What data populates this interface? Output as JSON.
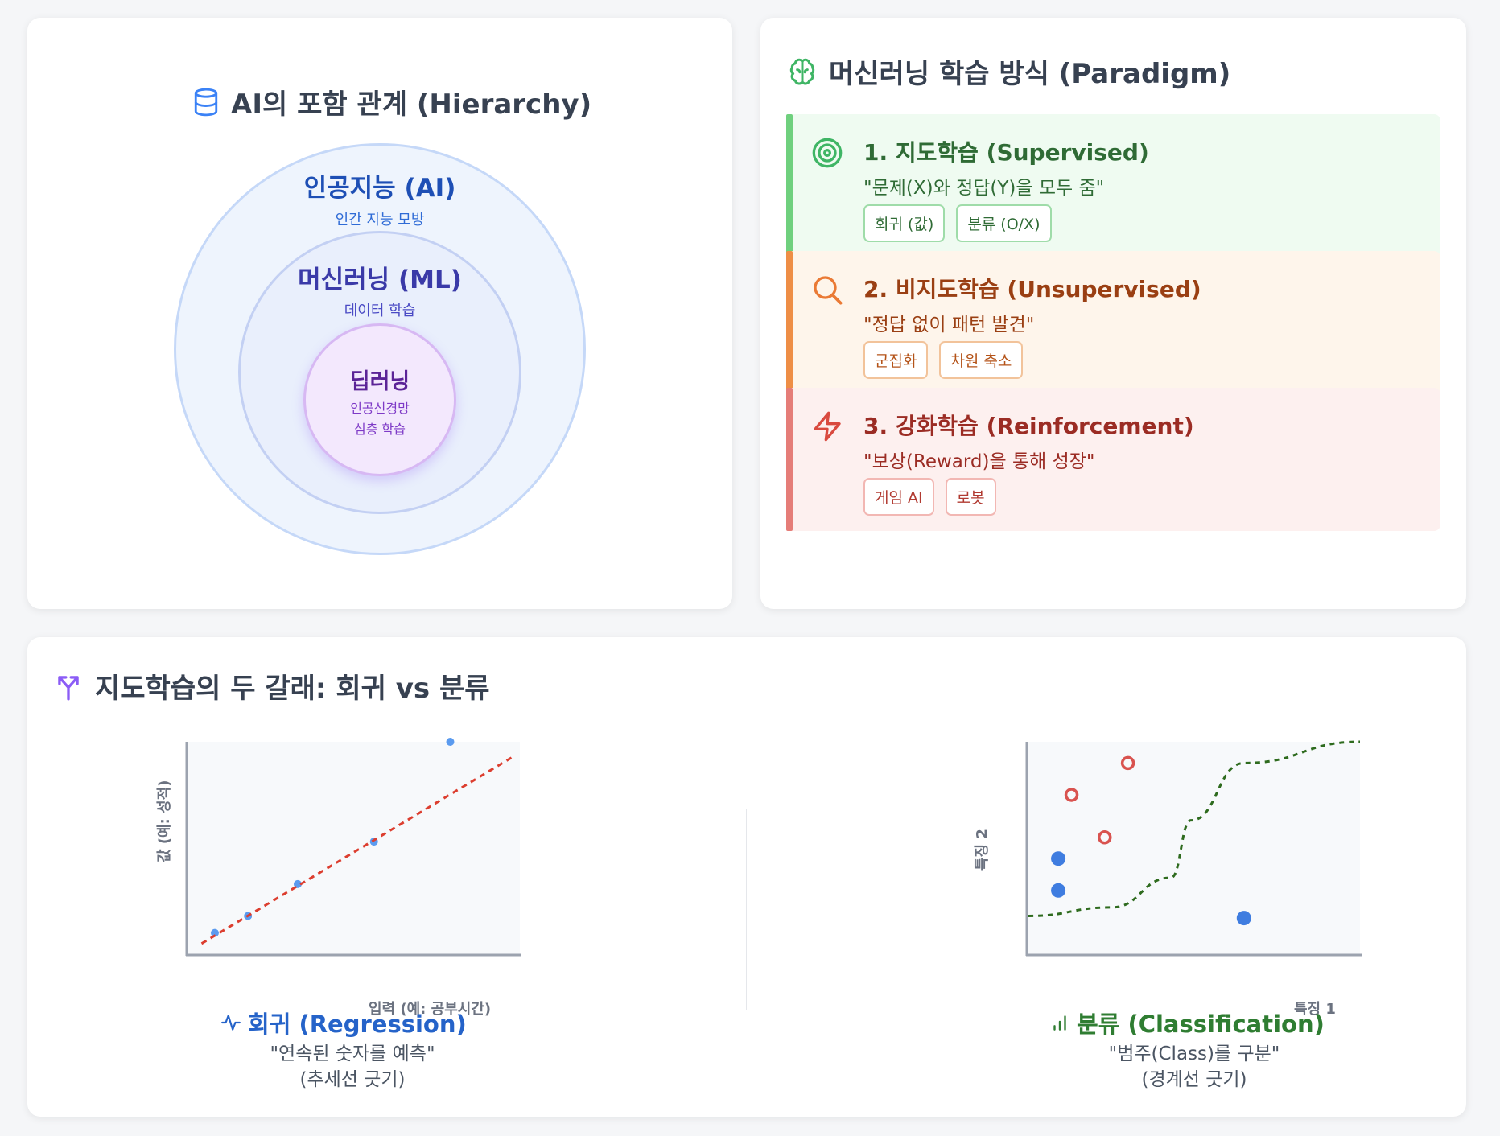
{
  "hierarchy": {
    "title": "AI의 포함 관계 (Hierarchy)",
    "icon": "database-icon",
    "ai": {
      "title": "인공지능 (AI)",
      "desc": "인간 지능 모방"
    },
    "ml": {
      "title": "머신러닝 (ML)",
      "desc": "데이터 학습"
    },
    "dl": {
      "title": "딥러닝",
      "desc1": "인공신경망",
      "desc2": "심층 학습"
    }
  },
  "paradigm": {
    "title": "머신러닝 학습 방식 (Paradigm)",
    "icon": "brain-icon",
    "items": [
      {
        "title": "1. 지도학습 (Supervised)",
        "quote": "\"문제(X)와 정답(Y)을 모두 줌\"",
        "tags": [
          "회귀 (값)",
          "분류 (O/X)"
        ],
        "icon": "target-icon",
        "color": "#2f6b35",
        "accent": "#6fd07e",
        "bg": "#effbf1",
        "tag_border": "#9fdca9",
        "tag_color": "#2f6b35"
      },
      {
        "title": "2. 비지도학습 (Unsupervised)",
        "quote": "\"정답 없이 패턴 발견\"",
        "tags": [
          "군집화",
          "차원 축소"
        ],
        "icon": "search-icon",
        "color": "#9a3f13",
        "accent": "#ee8e46",
        "bg": "#fef5eb",
        "tag_border": "#f2c39a",
        "tag_color": "#b45318"
      },
      {
        "title": "3. 강화학습 (Reinforcement)",
        "quote": "\"보상(Reward)을 통해 성장\"",
        "tags": [
          "게임 AI",
          "로봇"
        ],
        "icon": "lightning-icon",
        "color": "#9b2c24",
        "accent": "#e57d78",
        "bg": "#fdf0ef",
        "tag_border": "#f2b7b3",
        "tag_color": "#b13a31"
      }
    ]
  },
  "branches": {
    "title": "지도학습의 두 갈래: 회귀 vs 분류",
    "icon": "split-icon",
    "regression": {
      "title": "회귀 (Regression)",
      "icon": "activity-icon",
      "desc1": "\"연속된 숫자를 예측\"",
      "desc2": "(추세선 긋기)",
      "color": "#2563c9"
    },
    "classification": {
      "title": "분류 (Classification)",
      "icon": "bar-chart-icon",
      "desc1": "\"범주(Class)를 구분\"",
      "desc2": "(경계선 긋기)",
      "color": "#2f7d32"
    }
  },
  "chart_data": [
    {
      "type": "scatter",
      "title": "회귀 (Regression)",
      "xlabel": "입력 (예: 공부시간)",
      "ylabel": "값 (예: 성적)",
      "xlim": [
        0,
        10
      ],
      "ylim": [
        0,
        10
      ],
      "grid": false,
      "series": [
        {
          "points": [
            [
              0.8,
              1.0
            ],
            [
              1.8,
              1.8
            ],
            [
              3.3,
              3.3
            ],
            [
              5.6,
              5.3
            ],
            [
              7.9,
              10.0
            ]
          ],
          "color": "#5b9bef"
        }
      ],
      "trendline": {
        "from": [
          0.4,
          0.5
        ],
        "to": [
          9.8,
          9.3
        ],
        "color": "#dc3e2f",
        "style": "dashed"
      }
    },
    {
      "type": "scatter",
      "title": "분류 (Classification)",
      "xlabel": "특징 1",
      "ylabel": "특징 2",
      "xlim": [
        0,
        10
      ],
      "ylim": [
        0,
        10
      ],
      "grid": false,
      "series": [
        {
          "points": [
            [
              3.0,
              9.0
            ],
            [
              1.3,
              7.5
            ],
            [
              2.3,
              5.5
            ]
          ],
          "color": "#d9534f",
          "marker": "open-circle"
        },
        {
          "points": [
            [
              0.9,
              4.5
            ],
            [
              0.9,
              3.0
            ],
            [
              6.5,
              1.7
            ]
          ],
          "color": "#3f7de0",
          "marker": "filled-circle"
        }
      ],
      "boundary": {
        "points": [
          [
            0,
            1.8
          ],
          [
            2.5,
            2.2
          ],
          [
            4.3,
            3.6
          ],
          [
            4.9,
            6.3
          ],
          [
            6.5,
            9.0
          ],
          [
            10,
            10.0
          ]
        ],
        "color": "#2e6b1e",
        "style": "dashed"
      }
    }
  ]
}
